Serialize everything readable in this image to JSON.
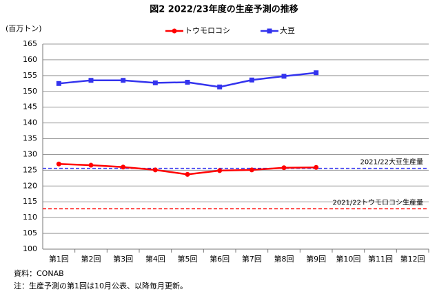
{
  "chart_data": {
    "type": "line",
    "title": "図2 2022/23年度の生産予測の推移",
    "y_axis_label": "(百万トン)",
    "categories": [
      "第1回",
      "第2回",
      "第3回",
      "第4回",
      "第5回",
      "第6回",
      "第7回",
      "第8回",
      "第9回",
      "第10回",
      "第11回",
      "第12回"
    ],
    "series": [
      {
        "name": "トウモロコシ",
        "color": "#ff0000",
        "marker": "circle",
        "values": [
          127,
          126.6,
          126,
          125.1,
          123.7,
          124.9,
          125.1,
          125.8,
          125.9,
          null,
          null,
          null
        ]
      },
      {
        "name": "大豆",
        "color": "#3333ee",
        "marker": "square",
        "values": [
          152.5,
          153.5,
          153.5,
          152.7,
          152.9,
          151.4,
          153.6,
          154.8,
          155.9,
          null,
          null,
          null
        ]
      }
    ],
    "reference_lines": [
      {
        "label": "2021/22大豆生産量",
        "value": 125.6,
        "color": "#3333ee"
      },
      {
        "label": "2021/22トウモロコシ生産量",
        "value": 112.8,
        "color": "#ff0000"
      }
    ],
    "ylim": [
      100,
      165
    ],
    "yticks": [
      100,
      105,
      110,
      115,
      120,
      125,
      130,
      135,
      140,
      145,
      150,
      155,
      160,
      165
    ],
    "grid": true,
    "legend": "top",
    "notes": [
      "資料：CONAB",
      "注：生産予測の第1回は10月公表、以降毎月更新。"
    ]
  }
}
